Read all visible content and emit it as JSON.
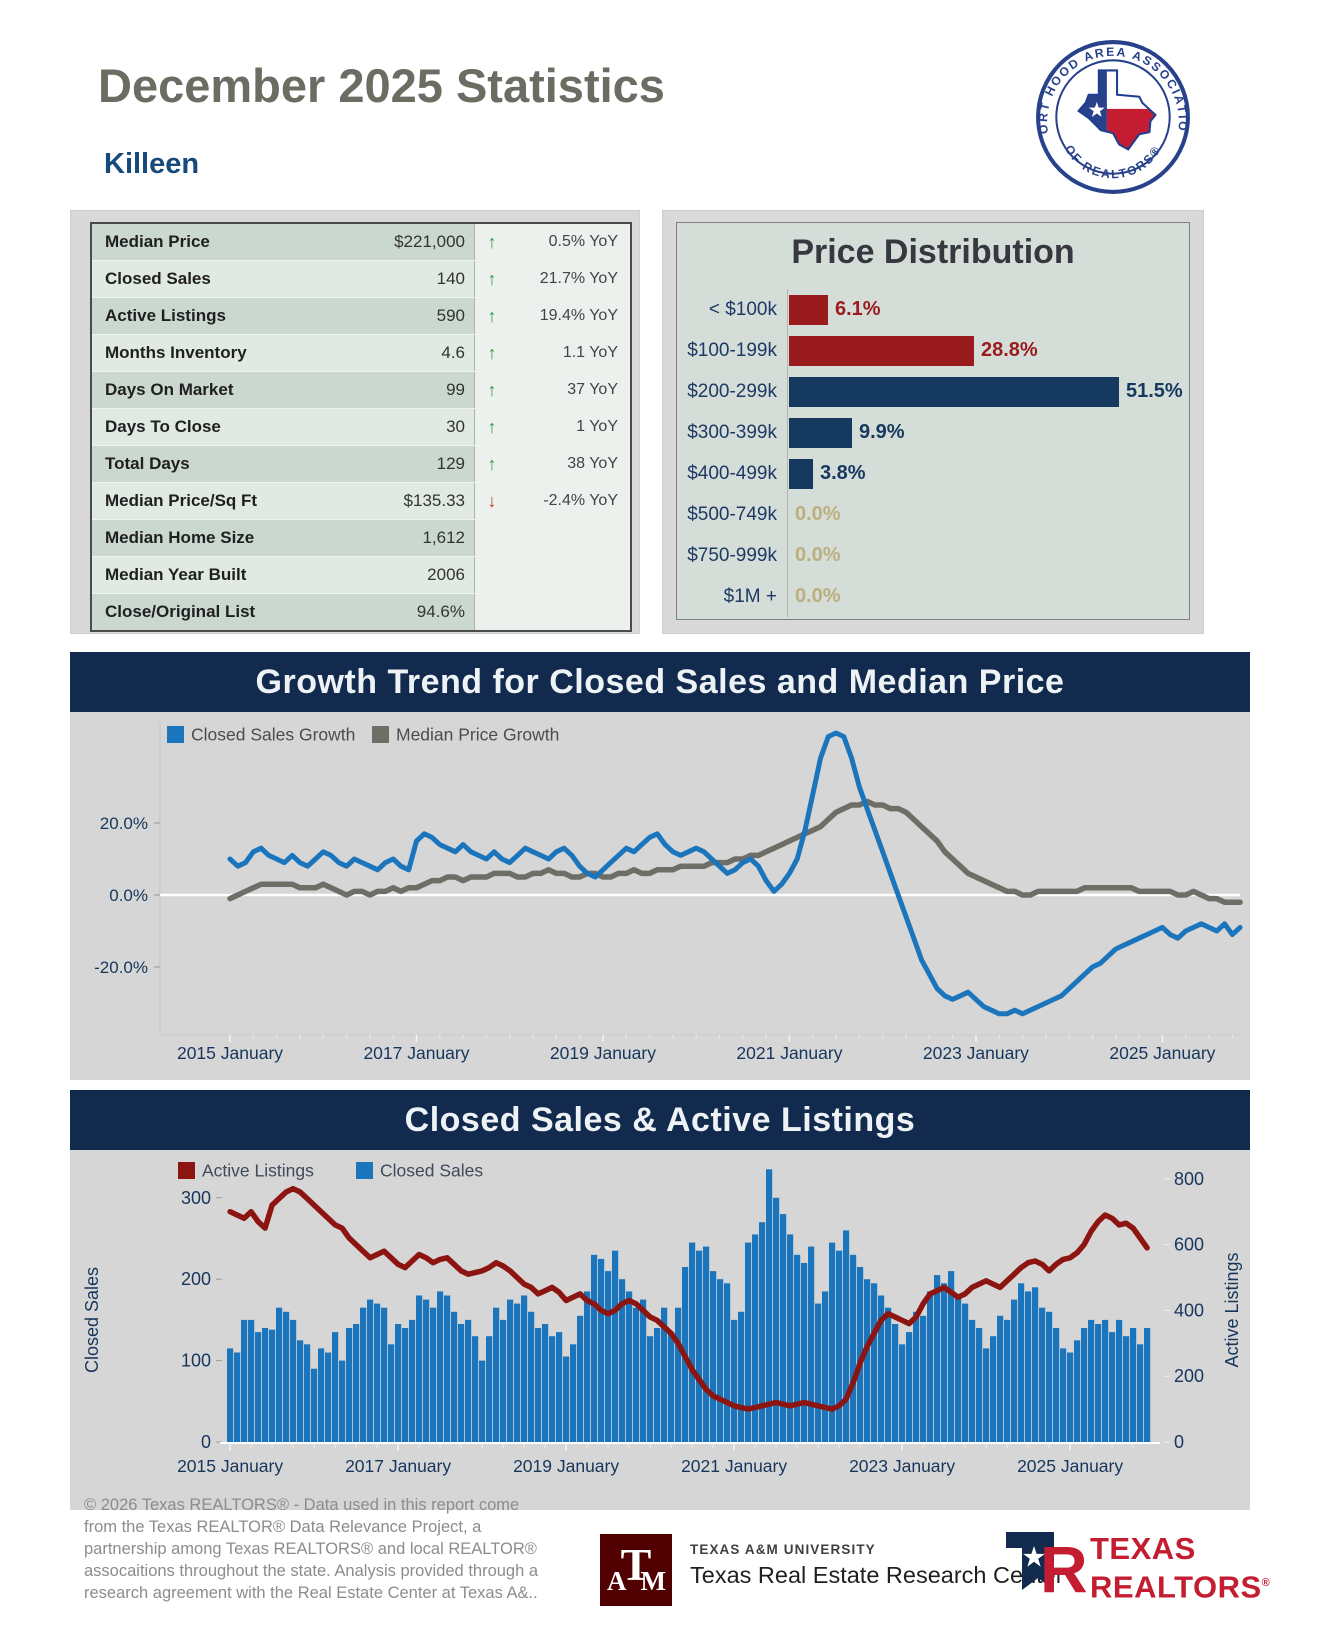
{
  "header": {
    "title": "December 2025 Statistics",
    "subtitle": "Killeen",
    "seal_top": "FORT HOOD AREA ASSOCIATION",
    "seal_bottom": "OF REALTORS®"
  },
  "colors": {
    "blue": "#1B75BC",
    "gray_line": "#6E6E67",
    "red_line": "#8C1512",
    "bar_red": "#9A1B1E",
    "bar_navy": "#16395F",
    "zero_tan": "#BCAF7E",
    "navy_text": "#16365C",
    "title_bar": "#122A4D",
    "up_green": "#2F9B45",
    "down_red": "#C23B33"
  },
  "stats_table": {
    "rows": [
      {
        "label": "Median Price",
        "value": "$221,000",
        "direction": "up",
        "yoy": "0.5% YoY"
      },
      {
        "label": "Closed Sales",
        "value": "140",
        "direction": "up",
        "yoy": "21.7% YoY"
      },
      {
        "label": "Active Listings",
        "value": "590",
        "direction": "up",
        "yoy": "19.4% YoY"
      },
      {
        "label": "Months Inventory",
        "value": "4.6",
        "direction": "up",
        "yoy": "1.1 YoY"
      },
      {
        "label": "Days On Market",
        "value": "99",
        "direction": "up",
        "yoy": "37 YoY"
      },
      {
        "label": "Days To Close",
        "value": "30",
        "direction": "up",
        "yoy": "1 YoY"
      },
      {
        "label": "Total Days",
        "value": "129",
        "direction": "up",
        "yoy": "38 YoY"
      },
      {
        "label": "Median Price/Sq Ft",
        "value": "$135.33",
        "direction": "down",
        "yoy": "-2.4% YoY"
      },
      {
        "label": "Median Home Size",
        "value": "1,612",
        "direction": "",
        "yoy": ""
      },
      {
        "label": "Median Year Built",
        "value": "2006",
        "direction": "",
        "yoy": ""
      },
      {
        "label": "Close/Original List",
        "value": "94.6%",
        "direction": "",
        "yoy": ""
      }
    ]
  },
  "chart_data": [
    {
      "type": "bar",
      "orientation": "horizontal",
      "title": "Price Distribution",
      "categories": [
        "< $100k",
        "$100-199k",
        "$200-299k",
        "$300-399k",
        "$400-499k",
        "$500-749k",
        "$750-999k",
        "$1M +"
      ],
      "values": [
        6.1,
        28.8,
        51.5,
        9.9,
        3.8,
        0.0,
        0.0,
        0.0
      ],
      "value_labels": [
        "6.1%",
        "28.8%",
        "51.5%",
        "9.9%",
        "3.8%",
        "0.0%",
        "0.0%",
        "0.0%"
      ],
      "bar_colors": [
        "#9A1B1E",
        "#9A1B1E",
        "#16395F",
        "#16395F",
        "#16395F",
        "",
        "",
        ""
      ],
      "xlim": [
        0,
        55
      ]
    },
    {
      "type": "line",
      "title": "Growth Trend for Closed Sales and Median Price",
      "x_start": "2015 January",
      "x_end": "2025 November",
      "x_tick_labels": [
        "2015 January",
        "2017 January",
        "2019 January",
        "2021 January",
        "2023 January",
        "2025 January"
      ],
      "yticks": [
        {
          "label": "20.0%",
          "value": 20
        },
        {
          "label": "0.0%",
          "value": 0
        },
        {
          "label": "-20.0%",
          "value": -20
        }
      ],
      "ylim": [
        -39,
        48
      ],
      "grid": "zero-line-only",
      "legend_position": "top-left",
      "series": [
        {
          "name": "Closed Sales Growth",
          "color": "#1B75BC",
          "values": [
            10,
            8,
            9,
            12,
            13,
            11,
            10,
            9,
            11,
            9,
            8,
            10,
            12,
            11,
            9,
            8,
            10,
            9,
            8,
            7,
            9,
            10,
            8,
            7,
            15,
            17,
            16,
            14,
            13,
            12,
            14,
            12,
            11,
            10,
            12,
            10,
            9,
            11,
            13,
            12,
            11,
            10,
            12,
            13,
            11,
            8,
            6,
            5,
            7,
            9,
            11,
            13,
            12,
            14,
            16,
            17,
            14,
            12,
            11,
            12,
            13,
            12,
            10,
            8,
            6,
            7,
            9,
            10,
            8,
            4,
            1,
            3,
            6,
            10,
            18,
            28,
            38,
            44,
            45,
            44,
            38,
            30,
            24,
            18,
            12,
            6,
            0,
            -6,
            -12,
            -18,
            -22,
            -26,
            -28,
            -29,
            -28,
            -27,
            -29,
            -31,
            -32,
            -33,
            -33,
            -32,
            -33,
            -32,
            -31,
            -30,
            -29,
            -28,
            -26,
            -24,
            -22,
            -20,
            -19,
            -17,
            -15,
            -14,
            -13,
            -12,
            -11,
            -10,
            -9,
            -11,
            -12,
            -10,
            -9,
            -8,
            -9,
            -10,
            -8,
            -11,
            -9
          ]
        },
        {
          "name": "Median Price Growth",
          "color": "#6E6E67",
          "values": [
            -1,
            0,
            1,
            2,
            3,
            3,
            3,
            3,
            3,
            2,
            2,
            2,
            3,
            2,
            1,
            0,
            1,
            1,
            0,
            1,
            1,
            2,
            1,
            2,
            2,
            3,
            4,
            4,
            5,
            5,
            4,
            5,
            5,
            5,
            6,
            6,
            6,
            5,
            5,
            6,
            6,
            7,
            6,
            6,
            5,
            5,
            6,
            6,
            5,
            5,
            6,
            6,
            7,
            6,
            6,
            7,
            7,
            7,
            8,
            8,
            8,
            8,
            9,
            9,
            9,
            10,
            10,
            11,
            11,
            12,
            13,
            14,
            15,
            16,
            17,
            18,
            19,
            21,
            23,
            24,
            25,
            25,
            26,
            25,
            25,
            24,
            24,
            23,
            21,
            19,
            17,
            15,
            12,
            10,
            8,
            6,
            5,
            4,
            3,
            2,
            1,
            1,
            0,
            0,
            1,
            1,
            1,
            1,
            1,
            1,
            2,
            2,
            2,
            2,
            2,
            2,
            2,
            1,
            1,
            1,
            1,
            1,
            0,
            0,
            1,
            0,
            -1,
            -1,
            -2,
            -2,
            -2
          ]
        }
      ]
    },
    {
      "type": "bar+line",
      "title": "Closed Sales & Active Listings",
      "x_start": "2015 January",
      "x_end": "2025 December",
      "x_tick_labels": [
        "2015 January",
        "2017 January",
        "2019 January",
        "2021 January",
        "2023 January",
        "2025 January"
      ],
      "left_axis": {
        "label": "Closed Sales",
        "ticks": [
          0,
          100,
          200,
          300
        ],
        "max": 350
      },
      "right_axis": {
        "label": "Active Listings",
        "ticks": [
          0,
          200,
          400,
          600,
          800
        ],
        "max": 860
      },
      "legend_position": "top-left",
      "series": [
        {
          "name": "Active Listings",
          "kind": "line",
          "axis": "right",
          "color": "#8C1512",
          "values": [
            700,
            690,
            680,
            700,
            670,
            650,
            720,
            740,
            760,
            770,
            760,
            740,
            720,
            700,
            680,
            660,
            650,
            620,
            600,
            580,
            560,
            570,
            580,
            560,
            540,
            530,
            550,
            570,
            560,
            545,
            555,
            560,
            540,
            520,
            510,
            515,
            520,
            530,
            545,
            535,
            520,
            500,
            480,
            470,
            450,
            460,
            470,
            455,
            430,
            440,
            450,
            430,
            420,
            400,
            390,
            400,
            420,
            430,
            420,
            400,
            380,
            370,
            350,
            330,
            300,
            260,
            220,
            190,
            160,
            140,
            130,
            120,
            110,
            105,
            100,
            105,
            110,
            115,
            120,
            115,
            110,
            115,
            120,
            115,
            110,
            105,
            100,
            110,
            130,
            180,
            240,
            290,
            330,
            370,
            390,
            380,
            370,
            360,
            380,
            420,
            450,
            460,
            470,
            455,
            440,
            450,
            470,
            480,
            490,
            480,
            470,
            490,
            510,
            530,
            545,
            550,
            540,
            520,
            540,
            555,
            560,
            575,
            600,
            640,
            670,
            690,
            680,
            660,
            665,
            650,
            620,
            590
          ]
        },
        {
          "name": "Closed Sales",
          "kind": "bar",
          "axis": "left",
          "color": "#1B75BC",
          "values": [
            115,
            110,
            150,
            150,
            135,
            140,
            138,
            165,
            160,
            150,
            125,
            120,
            90,
            115,
            110,
            135,
            100,
            140,
            145,
            165,
            175,
            170,
            165,
            120,
            145,
            140,
            150,
            180,
            175,
            165,
            185,
            180,
            160,
            145,
            150,
            130,
            100,
            130,
            165,
            150,
            175,
            170,
            180,
            160,
            140,
            145,
            130,
            135,
            105,
            120,
            155,
            185,
            230,
            225,
            210,
            235,
            200,
            185,
            165,
            175,
            130,
            140,
            165,
            135,
            165,
            215,
            245,
            235,
            240,
            210,
            200,
            195,
            150,
            160,
            245,
            255,
            270,
            335,
            300,
            280,
            255,
            230,
            220,
            240,
            170,
            185,
            245,
            235,
            260,
            230,
            215,
            200,
            195,
            180,
            165,
            145,
            120,
            135,
            160,
            155,
            185,
            205,
            195,
            210,
            180,
            170,
            150,
            140,
            115,
            130,
            155,
            150,
            175,
            195,
            185,
            190,
            165,
            160,
            140,
            115,
            110,
            125,
            140,
            150,
            145,
            150,
            135,
            150,
            130,
            140,
            120,
            140
          ]
        }
      ]
    }
  ],
  "footer": {
    "disclaimer": "© 2026 Texas REALTORS® - Data used in this report come\nfrom the Texas REALTOR® Data Relevance Project, a\npartnership among Texas REALTORS® and local REALTOR®\nassocaitions throughout the state. Analysis provided through a\nresearch agreement with the Real Estate Center at Texas A&..",
    "am_university": "TEXAS A&M UNIVERSITY",
    "am_center": "Texas Real Estate Research Center",
    "tr_line1": "TEXAS",
    "tr_line2": "REALTORS",
    "tr_reg": "®"
  }
}
